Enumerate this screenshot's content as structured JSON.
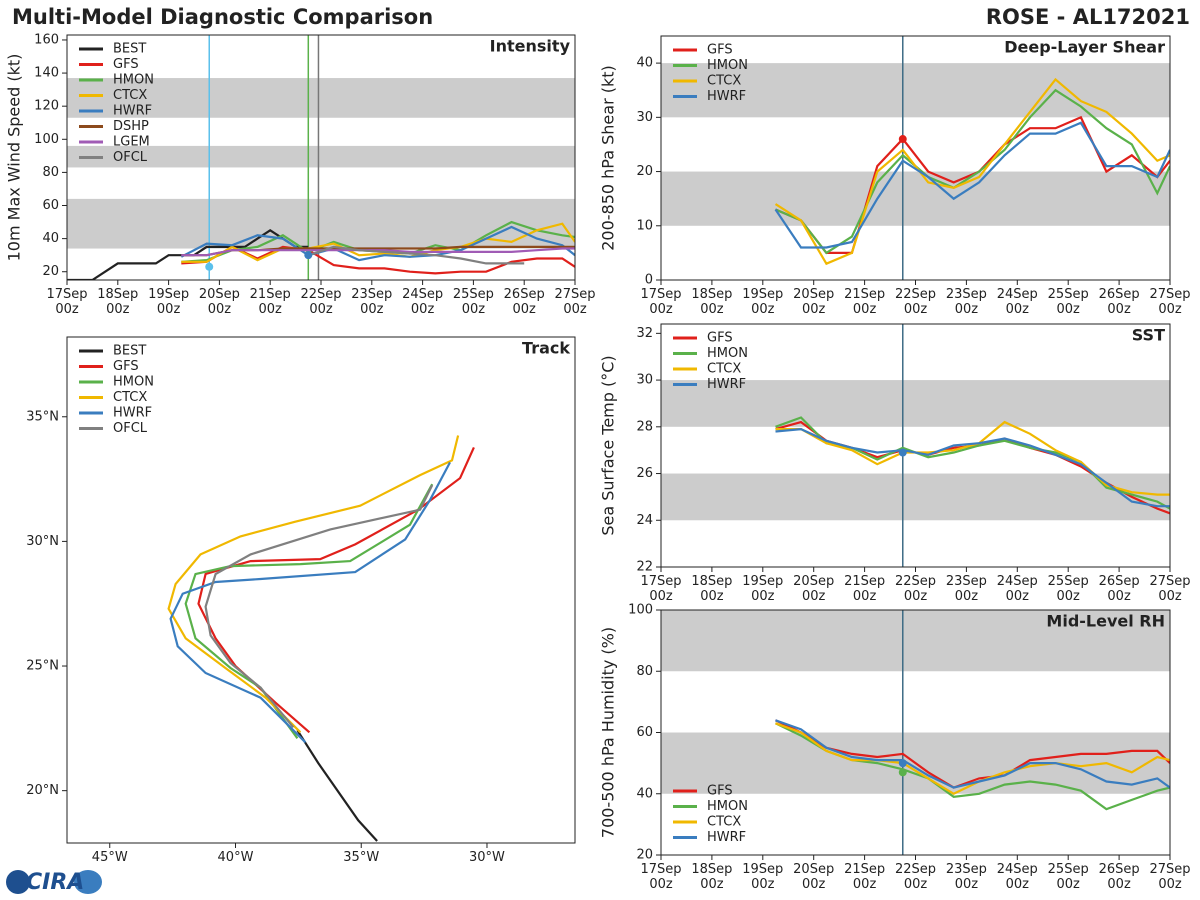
{
  "title": "Multi-Model Diagnostic Comparison",
  "storm": "ROSE - AL172021",
  "logo": "CIRA",
  "chart_data": [
    {
      "type": "line",
      "title": "Intensity",
      "ylabel": "10m Max Wind Speed (kt)",
      "legend": "upper left",
      "xlim": [
        0,
        10
      ],
      "xticks": [
        {
          "value": 0,
          "label": "17Sep\n00z"
        },
        {
          "value": 1,
          "label": "18Sep\n00z"
        },
        {
          "value": 2,
          "label": "19Sep\n00z"
        },
        {
          "value": 3,
          "label": "20Sep\n00z"
        },
        {
          "value": 4,
          "label": "21Sep\n00z"
        },
        {
          "value": 5,
          "label": "22Sep\n00z"
        },
        {
          "value": 6,
          "label": "23Sep\n00z"
        },
        {
          "value": 7,
          "label": "24Sep\n00z"
        },
        {
          "value": 8,
          "label": "25Sep\n00z"
        },
        {
          "value": 9,
          "label": "26Sep\n00z"
        },
        {
          "value": 10,
          "label": "27Sep\n00z"
        }
      ],
      "ylim": [
        15,
        163
      ],
      "yticks": [
        20,
        40,
        60,
        80,
        100,
        120,
        140,
        160
      ],
      "bands": [
        [
          34,
          64
        ],
        [
          83,
          96
        ],
        [
          113,
          137
        ]
      ],
      "vlines": [
        {
          "x": 2.8,
          "color": "#5bc0eb"
        },
        {
          "x": 4.75,
          "color": "#5ab14a"
        },
        {
          "x": 4.95,
          "color": "#777777"
        }
      ],
      "points": [
        {
          "x": 2.8,
          "y": 23,
          "color": "#5bc0eb"
        },
        {
          "x": 4.75,
          "y": 30,
          "color": "#3a7dbf"
        }
      ],
      "x": [
        2.25,
        2.75,
        3.25,
        3.75,
        4.25,
        4.75,
        5.25,
        5.75,
        6.25,
        6.75,
        7.25,
        7.75,
        8.25,
        8.75,
        9.25,
        9.75,
        10
      ],
      "series": [
        {
          "name": "BEST",
          "color": "#222222",
          "x": [
            0,
            0.5,
            1,
            1.5,
            1.75,
            2,
            2.5,
            2.75,
            3,
            3.5,
            3.75,
            4,
            4.25,
            4.5,
            4.75
          ],
          "values": [
            15,
            15,
            25,
            25,
            25,
            30,
            30,
            35,
            35,
            35,
            40,
            45,
            40,
            35,
            35
          ]
        },
        {
          "name": "GFS",
          "color": "#e0201b",
          "values": [
            25,
            26,
            35,
            28,
            35,
            33,
            24,
            22,
            22,
            20,
            19,
            20,
            20,
            26,
            28,
            28,
            23
          ]
        },
        {
          "name": "HMON",
          "color": "#5ab14a",
          "values": [
            26,
            27,
            33,
            35,
            42,
            32,
            38,
            33,
            32,
            31,
            36,
            33,
            42,
            50,
            45,
            42,
            41
          ]
        },
        {
          "name": "CTCX",
          "color": "#f0b800",
          "values": [
            26,
            26,
            35,
            27,
            34,
            34,
            37,
            30,
            31,
            29,
            33,
            35,
            40,
            38,
            45,
            49,
            38
          ]
        },
        {
          "name": "HWRF",
          "color": "#3a7dbf",
          "values": [
            29,
            37,
            36,
            42,
            40,
            30,
            34,
            27,
            30,
            29,
            30,
            33,
            40,
            47,
            40,
            36,
            30
          ]
        },
        {
          "name": "DSHP",
          "color": "#8c4a1c",
          "values": [
            30,
            30,
            33,
            33,
            34,
            34,
            34,
            34,
            34,
            34,
            34,
            35,
            35,
            35,
            35,
            35,
            35
          ]
        },
        {
          "name": "LGEM",
          "color": "#a05bb5",
          "values": [
            30,
            30,
            33,
            33,
            33,
            33,
            33,
            33,
            33,
            32,
            32,
            32,
            32,
            32,
            33,
            34,
            34
          ]
        },
        {
          "name": "OFCL",
          "color": "#808080",
          "x": [
            4.75,
            5.25,
            5.75,
            6.25,
            6.75,
            7.25,
            7.75,
            8.25,
            8.75,
            9.0
          ],
          "values": [
            30,
            35,
            33,
            32,
            31,
            30,
            28,
            25,
            25,
            25
          ]
        }
      ]
    },
    {
      "type": "line",
      "title": "Deep-Layer Shear",
      "ylabel": "200-850 hPa Shear (kt)",
      "legend": "upper left",
      "xlim": [
        0,
        10
      ],
      "xticks": [
        {
          "value": 0,
          "label": "17Sep\n00z"
        },
        {
          "value": 1,
          "label": "18Sep\n00z"
        },
        {
          "value": 2,
          "label": "19Sep\n00z"
        },
        {
          "value": 3,
          "label": "20Sep\n00z"
        },
        {
          "value": 4,
          "label": "21Sep\n00z"
        },
        {
          "value": 5,
          "label": "22Sep\n00z"
        },
        {
          "value": 6,
          "label": "23Sep\n00z"
        },
        {
          "value": 7,
          "label": "24Sep\n00z"
        },
        {
          "value": 8,
          "label": "25Sep\n00z"
        },
        {
          "value": 9,
          "label": "26Sep\n00z"
        },
        {
          "value": 10,
          "label": "27Sep\n00z"
        }
      ],
      "ylim": [
        0,
        45
      ],
      "yticks": [
        0,
        10,
        20,
        30,
        40
      ],
      "bands": [
        [
          10,
          20
        ],
        [
          30,
          40
        ]
      ],
      "vlines": [
        {
          "x": 4.75,
          "color": "#3d6b85"
        }
      ],
      "points": [
        {
          "x": 4.75,
          "y": 26,
          "color": "#e0201b"
        }
      ],
      "x": [
        2.25,
        2.75,
        3.25,
        3.75,
        4.25,
        4.75,
        5.25,
        5.75,
        6.25,
        6.75,
        7.25,
        7.75,
        8.25,
        8.75,
        9.25,
        9.75,
        10
      ],
      "series": [
        {
          "name": "GFS",
          "color": "#e0201b",
          "values": [
            13,
            11,
            5,
            5,
            21,
            26,
            20,
            18,
            20,
            25,
            28,
            28,
            30,
            20,
            23,
            19,
            22
          ]
        },
        {
          "name": "HMON",
          "color": "#5ab14a",
          "values": [
            13,
            11,
            5,
            8,
            18,
            23,
            19,
            17,
            20,
            24,
            30,
            35,
            32,
            28,
            25,
            16,
            21
          ]
        },
        {
          "name": "CTCX",
          "color": "#f0b800",
          "values": [
            14,
            11,
            3,
            5,
            20,
            24,
            18,
            17,
            19,
            25,
            31,
            37,
            33,
            31,
            27,
            22,
            23
          ]
        },
        {
          "name": "HWRF",
          "color": "#3a7dbf",
          "values": [
            13,
            6,
            6,
            7,
            15,
            22,
            19,
            15,
            18,
            23,
            27,
            27,
            29,
            21,
            21,
            19,
            24
          ]
        }
      ]
    },
    {
      "type": "track",
      "title": "Track",
      "legend": "upper left",
      "xlim": [
        -46.7,
        -26.5
      ],
      "xticks": [
        {
          "value": -45,
          "label": "45°W"
        },
        {
          "value": -40,
          "label": "40°W"
        },
        {
          "value": -35,
          "label": "35°W"
        },
        {
          "value": -30,
          "label": "30°W"
        }
      ],
      "ylim": [
        17.9,
        38.2
      ],
      "yticks": [
        {
          "value": 20,
          "label": "20°N"
        },
        {
          "value": 25,
          "label": "25°N"
        },
        {
          "value": 30,
          "label": "30°N"
        },
        {
          "value": 35,
          "label": "35°N"
        }
      ],
      "series": [
        {
          "name": "BEST",
          "color": "#222222",
          "lon": [
            -34.37,
            -35.12,
            -36.71,
            -37.54
          ],
          "lat": [
            17.98,
            18.81,
            21.11,
            22.42
          ]
        },
        {
          "name": "GFS",
          "color": "#e0201b",
          "lon": [
            -37.06,
            -38.41,
            -40.0,
            -40.79,
            -41.47,
            -41.19,
            -39.4,
            -36.63,
            -35.24,
            -32.74,
            -31.07,
            -30.52
          ],
          "lat": [
            22.34,
            23.53,
            25.0,
            26.11,
            27.5,
            28.69,
            29.21,
            29.29,
            29.88,
            31.27,
            32.54,
            33.77
          ]
        },
        {
          "name": "HMON",
          "color": "#5ab14a",
          "lon": [
            -37.54,
            -39.0,
            -40.2,
            -41.59,
            -41.98,
            -41.59,
            -40.2,
            -37.42,
            -35.44,
            -33.06,
            -32.18
          ],
          "lat": [
            22.1,
            24.13,
            24.92,
            26.11,
            27.5,
            28.69,
            29.01,
            29.09,
            29.21,
            30.67,
            32.3
          ]
        },
        {
          "name": "CTCX",
          "color": "#f0b800",
          "lon": [
            -37.42,
            -38.8,
            -40.4,
            -41.98,
            -42.66,
            -42.38,
            -41.39,
            -39.8,
            -37.62,
            -35.04,
            -32.66,
            -31.39,
            -31.15
          ],
          "lat": [
            22.34,
            23.73,
            24.92,
            26.11,
            27.3,
            28.29,
            29.48,
            30.2,
            30.79,
            31.43,
            32.66,
            33.25,
            34.25
          ]
        },
        {
          "name": "HWRF",
          "color": "#3a7dbf",
          "lon": [
            -37.22,
            -39.0,
            -41.19,
            -42.3,
            -42.58,
            -42.1,
            -40.79,
            -39.0,
            -35.24,
            -33.25,
            -32.26,
            -31.47
          ],
          "lat": [
            21.94,
            23.73,
            24.72,
            25.79,
            26.9,
            27.9,
            28.37,
            28.49,
            28.77,
            30.08,
            31.67,
            33.17
          ]
        },
        {
          "name": "OFCL",
          "color": "#808080",
          "lon": [
            -37.7,
            -39.0,
            -40.2,
            -40.99,
            -41.19,
            -40.79,
            -39.4,
            -36.23,
            -32.66,
            -32.18
          ],
          "lat": [
            22.54,
            24.13,
            25.12,
            26.23,
            27.38,
            28.69,
            29.48,
            30.48,
            31.27,
            32.26
          ]
        }
      ]
    },
    {
      "type": "line",
      "title": "SST",
      "ylabel": "Sea Surface Temp (°C)",
      "legend": "upper left",
      "xlim": [
        0,
        10
      ],
      "xticks": [
        {
          "value": 0,
          "label": "17Sep\n00z"
        },
        {
          "value": 1,
          "label": "18Sep\n00z"
        },
        {
          "value": 2,
          "label": "19Sep\n00z"
        },
        {
          "value": 3,
          "label": "20Sep\n00z"
        },
        {
          "value": 4,
          "label": "21Sep\n00z"
        },
        {
          "value": 5,
          "label": "22Sep\n00z"
        },
        {
          "value": 6,
          "label": "23Sep\n00z"
        },
        {
          "value": 7,
          "label": "24Sep\n00z"
        },
        {
          "value": 8,
          "label": "25Sep\n00z"
        },
        {
          "value": 9,
          "label": "26Sep\n00z"
        },
        {
          "value": 10,
          "label": "27Sep\n00z"
        }
      ],
      "ylim": [
        22,
        32.4
      ],
      "yticks": [
        22,
        24,
        26,
        28,
        30,
        32
      ],
      "bands": [
        [
          24,
          26
        ],
        [
          28,
          30
        ]
      ],
      "vlines": [
        {
          "x": 4.75,
          "color": "#3d6b85"
        }
      ],
      "points": [
        {
          "x": 4.75,
          "y": 26.9,
          "color": "#3a7dbf"
        }
      ],
      "x": [
        2.25,
        2.75,
        3.25,
        3.75,
        4.25,
        4.75,
        5.25,
        5.75,
        6.25,
        6.75,
        7.25,
        7.75,
        8.25,
        8.75,
        9.25,
        9.75,
        10
      ],
      "series": [
        {
          "name": "GFS",
          "color": "#e0201b",
          "values": [
            27.9,
            28.2,
            27.4,
            27.1,
            26.7,
            27.0,
            26.8,
            27.1,
            27.2,
            27.5,
            27.1,
            26.8,
            26.3,
            25.6,
            25.0,
            24.5,
            24.3
          ]
        },
        {
          "name": "HMON",
          "color": "#5ab14a",
          "values": [
            28.0,
            28.4,
            27.3,
            27.1,
            26.6,
            27.1,
            26.7,
            26.9,
            27.2,
            27.4,
            27.1,
            26.9,
            26.5,
            25.4,
            25.1,
            24.8,
            24.5
          ]
        },
        {
          "name": "CTCX",
          "color": "#f0b800",
          "values": [
            27.9,
            27.9,
            27.3,
            27.0,
            26.4,
            26.9,
            26.9,
            27.0,
            27.3,
            28.2,
            27.7,
            27.0,
            26.5,
            25.5,
            25.2,
            25.1,
            25.1
          ]
        },
        {
          "name": "HWRF",
          "color": "#3a7dbf",
          "values": [
            27.8,
            27.9,
            27.4,
            27.1,
            26.9,
            27.0,
            26.8,
            27.2,
            27.3,
            27.5,
            27.2,
            26.8,
            26.4,
            25.6,
            24.8,
            24.6,
            24.6
          ]
        }
      ]
    },
    {
      "type": "line",
      "title": "Mid-Level RH",
      "ylabel": "700-500 hPa Humidity (%)",
      "legend": "lower left",
      "xlim": [
        0,
        10
      ],
      "xticks": [
        {
          "value": 0,
          "label": "17Sep\n00z"
        },
        {
          "value": 1,
          "label": "18Sep\n00z"
        },
        {
          "value": 2,
          "label": "19Sep\n00z"
        },
        {
          "value": 3,
          "label": "20Sep\n00z"
        },
        {
          "value": 4,
          "label": "21Sep\n00z"
        },
        {
          "value": 5,
          "label": "22Sep\n00z"
        },
        {
          "value": 6,
          "label": "23Sep\n00z"
        },
        {
          "value": 7,
          "label": "24Sep\n00z"
        },
        {
          "value": 8,
          "label": "25Sep\n00z"
        },
        {
          "value": 9,
          "label": "26Sep\n00z"
        },
        {
          "value": 10,
          "label": "27Sep\n00z"
        }
      ],
      "ylim": [
        20,
        100
      ],
      "yticks": [
        20,
        40,
        60,
        80,
        100
      ],
      "bands": [
        [
          40,
          60
        ],
        [
          80,
          100
        ]
      ],
      "vlines": [
        {
          "x": 4.75,
          "color": "#3d6b85"
        }
      ],
      "points": [
        {
          "x": 4.75,
          "y": 47,
          "color": "#5ab14a"
        },
        {
          "x": 4.75,
          "y": 50,
          "color": "#3a7dbf"
        }
      ],
      "x": [
        2.25,
        2.75,
        3.25,
        3.75,
        4.25,
        4.75,
        5.25,
        5.75,
        6.25,
        6.75,
        7.25,
        7.75,
        8.25,
        8.75,
        9.25,
        9.75,
        10
      ],
      "series": [
        {
          "name": "GFS",
          "color": "#e0201b",
          "values": [
            64,
            60,
            55,
            53,
            52,
            53,
            47,
            42,
            45,
            46,
            51,
            52,
            53,
            53,
            54,
            54,
            50
          ]
        },
        {
          "name": "HMON",
          "color": "#5ab14a",
          "values": [
            63,
            59,
            54,
            51,
            50,
            48,
            45,
            39,
            40,
            43,
            44,
            43,
            41,
            35,
            38,
            41,
            42
          ]
        },
        {
          "name": "CTCX",
          "color": "#f0b800",
          "values": [
            63,
            60,
            54,
            51,
            51,
            50,
            45,
            40,
            44,
            47,
            49,
            50,
            49,
            50,
            47,
            52,
            51
          ]
        },
        {
          "name": "HWRF",
          "color": "#3a7dbf",
          "values": [
            64,
            61,
            55,
            52,
            51,
            51,
            46,
            42,
            44,
            46,
            50,
            50,
            48,
            44,
            43,
            45,
            42
          ]
        }
      ]
    }
  ]
}
